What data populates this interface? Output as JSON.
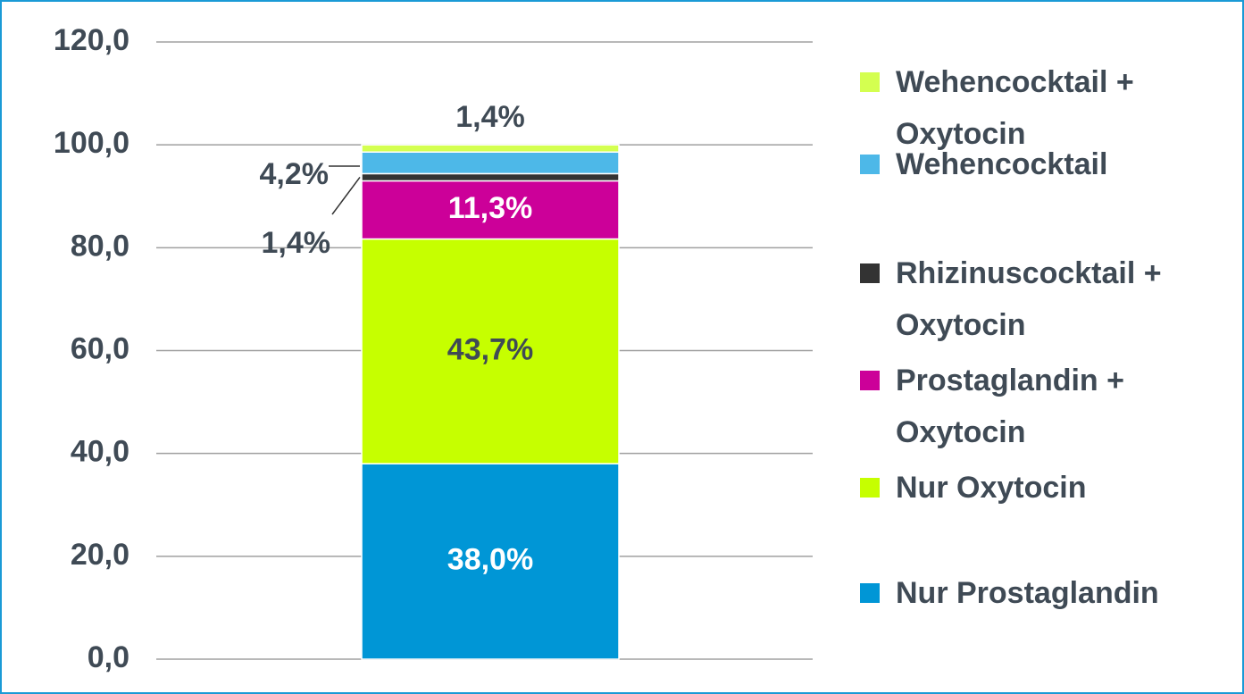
{
  "chart_data": {
    "type": "stacked_bar",
    "categories": [
      null
    ],
    "series": [
      {
        "name": "Nur Prostaglandin",
        "color": "#0096d6",
        "values": [
          38.0
        ],
        "value_labels": [
          "38,0%"
        ]
      },
      {
        "name": "Nur Oxytocin",
        "color": "#c6ff00",
        "values": [
          43.7
        ],
        "value_labels": [
          "43,7%"
        ]
      },
      {
        "name": "Prostaglandin + Oxytocin",
        "color": "#cc0099",
        "values": [
          11.3
        ],
        "value_labels": [
          "11,3%"
        ]
      },
      {
        "name": "Rhizinuscocktail + Oxytocin",
        "color": "#333333",
        "values": [
          1.4
        ],
        "value_labels": [
          "1,4%"
        ]
      },
      {
        "name": "Wehencocktail",
        "color": "#4db8e8",
        "values": [
          4.2
        ],
        "value_labels": [
          "4,2%"
        ]
      },
      {
        "name": "Wehencocktail + Oxytocin",
        "color": "#d4ff50",
        "values": [
          1.4
        ],
        "value_labels": [
          "1,4%"
        ]
      }
    ],
    "ylim": [
      0,
      120
    ],
    "yticks": [
      {
        "value": 0,
        "label": "0,0"
      },
      {
        "value": 20,
        "label": "20,0"
      },
      {
        "value": 40,
        "label": "40,0"
      },
      {
        "value": 60,
        "label": "60,0"
      },
      {
        "value": 80,
        "label": "80,0"
      },
      {
        "value": 100,
        "label": "100,0"
      },
      {
        "value": 120,
        "label": "120,0"
      }
    ],
    "grid": true,
    "legend": "right"
  }
}
